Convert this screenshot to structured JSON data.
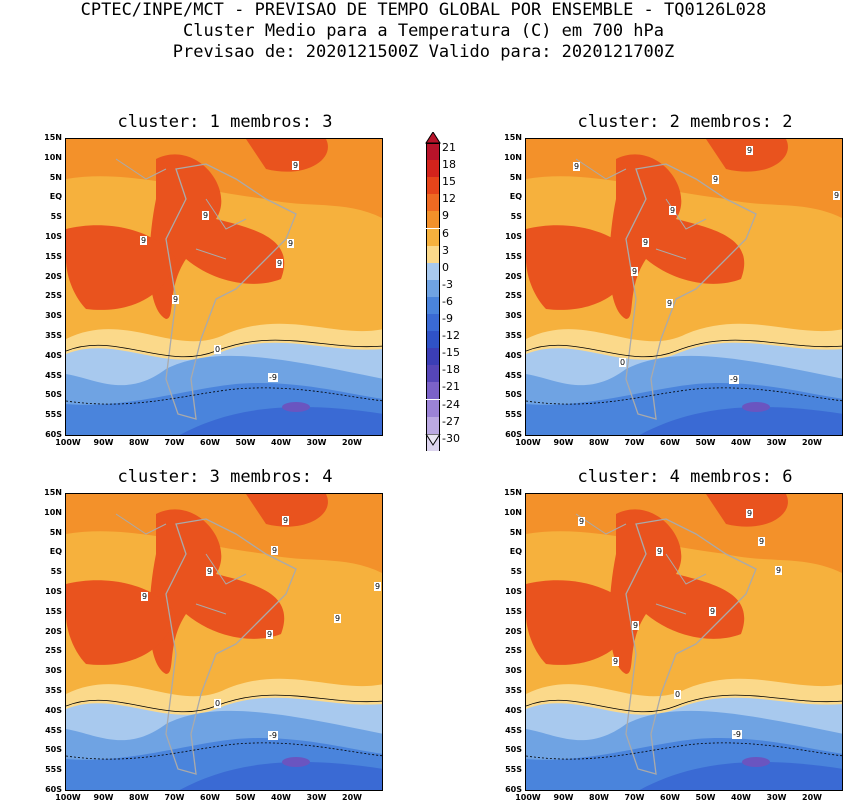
{
  "header": {
    "line1": "CPTEC/INPE/MCT - PREVISAO DE TEMPO GLOBAL POR ENSEMBLE - TQ0126L028",
    "line2": "Cluster Medio para a Temperatura (C) em 700 hPa",
    "line3": "Previsao de: 2020121500Z   Valido para: 2020121700Z"
  },
  "panels": [
    {
      "title": "cluster: 1   membros: 3",
      "labels": [
        "9",
        "9",
        "9",
        "9",
        "9",
        "9",
        "0",
        "-9"
      ]
    },
    {
      "title": "cluster: 2   membros: 2",
      "labels": [
        "9",
        "9",
        "9",
        "9",
        "9",
        "9",
        "9",
        "9",
        "0",
        "-9"
      ]
    },
    {
      "title": "cluster: 3   membros: 4",
      "labels": [
        "9",
        "9",
        "9",
        "9",
        "9",
        "9",
        "9",
        "0",
        "-9"
      ]
    },
    {
      "title": "cluster: 4   membros: 6",
      "labels": [
        "9",
        "9",
        "9",
        "9",
        "9",
        "9",
        "9",
        "9",
        "0",
        "-9"
      ]
    }
  ],
  "axes": {
    "lat": [
      "15N",
      "10N",
      "5N",
      "EQ",
      "5S",
      "10S",
      "15S",
      "20S",
      "25S",
      "30S",
      "35S",
      "40S",
      "45S",
      "50S",
      "55S",
      "60S"
    ],
    "lon": [
      "100W",
      "90W",
      "80W",
      "70W",
      "60W",
      "50W",
      "40W",
      "30W",
      "20W"
    ]
  },
  "colorbar": {
    "labels": [
      "21",
      "18",
      "15",
      "12",
      "9",
      "6",
      "3",
      "0",
      "-3",
      "-6",
      "-9",
      "-12",
      "-15",
      "-18",
      "-21",
      "-24",
      "-27",
      "-30"
    ],
    "colors": [
      "#b8132a",
      "#d3231c",
      "#e6441a",
      "#ef6a22",
      "#f3912a",
      "#f6b13d",
      "#fbd98a",
      "#a8c9ee",
      "#6fa3e3",
      "#4a84dc",
      "#3a6ad4",
      "#2f52c6",
      "#3b3eb6",
      "#5646b8",
      "#7b62c8",
      "#9b83d6",
      "#bba9e2",
      "#dcd4ee"
    ]
  }
}
